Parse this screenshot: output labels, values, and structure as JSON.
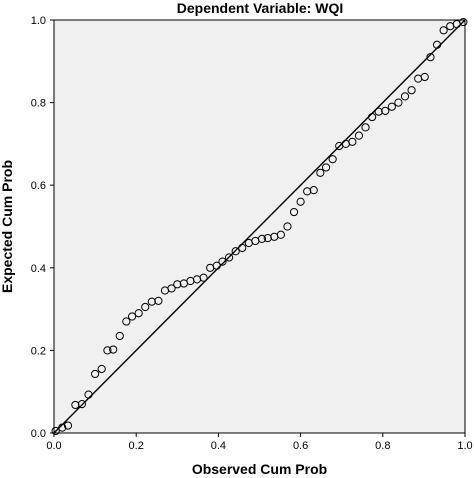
{
  "chart_data": {
    "type": "scatter",
    "title": "Dependent Variable: WQI",
    "xlabel": "Observed Cum Prob",
    "ylabel": "Expected Cum Prob",
    "xlim": [
      0,
      1
    ],
    "ylim": [
      0,
      1
    ],
    "x_ticks": [
      "0.0",
      "0.2",
      "0.4",
      "0.6",
      "0.8",
      "1.0"
    ],
    "y_ticks": [
      "0.0",
      "0.2",
      "0.4",
      "0.6",
      "0.8",
      "1.0"
    ],
    "grid": false,
    "reference_line": {
      "from": [
        0,
        0
      ],
      "to": [
        1,
        1
      ]
    },
    "colors": {
      "plot_background": "#f0f0f0",
      "marker_stroke": "#000000",
      "line": "#000000"
    },
    "x": [
      0.004,
      0.02,
      0.034,
      0.052,
      0.068,
      0.084,
      0.1,
      0.116,
      0.13,
      0.144,
      0.16,
      0.176,
      0.19,
      0.206,
      0.222,
      0.238,
      0.254,
      0.27,
      0.286,
      0.3,
      0.316,
      0.332,
      0.348,
      0.364,
      0.38,
      0.396,
      0.41,
      0.426,
      0.442,
      0.458,
      0.474,
      0.49,
      0.506,
      0.52,
      0.536,
      0.552,
      0.568,
      0.584,
      0.6,
      0.616,
      0.632,
      0.648,
      0.662,
      0.678,
      0.694,
      0.71,
      0.726,
      0.742,
      0.758,
      0.774,
      0.79,
      0.806,
      0.822,
      0.838,
      0.854,
      0.87,
      0.886,
      0.902,
      0.916,
      0.932,
      0.948,
      0.964,
      0.98,
      0.996
    ],
    "y": [
      0.005,
      0.013,
      0.018,
      0.068,
      0.07,
      0.093,
      0.143,
      0.155,
      0.2,
      0.202,
      0.235,
      0.27,
      0.282,
      0.29,
      0.305,
      0.318,
      0.32,
      0.345,
      0.35,
      0.36,
      0.362,
      0.368,
      0.372,
      0.376,
      0.4,
      0.405,
      0.415,
      0.425,
      0.44,
      0.448,
      0.46,
      0.465,
      0.47,
      0.472,
      0.475,
      0.48,
      0.5,
      0.535,
      0.56,
      0.585,
      0.588,
      0.63,
      0.643,
      0.663,
      0.695,
      0.7,
      0.705,
      0.72,
      0.74,
      0.765,
      0.778,
      0.78,
      0.79,
      0.8,
      0.815,
      0.83,
      0.858,
      0.862,
      0.91,
      0.94,
      0.975,
      0.985,
      0.99,
      0.995
    ]
  }
}
